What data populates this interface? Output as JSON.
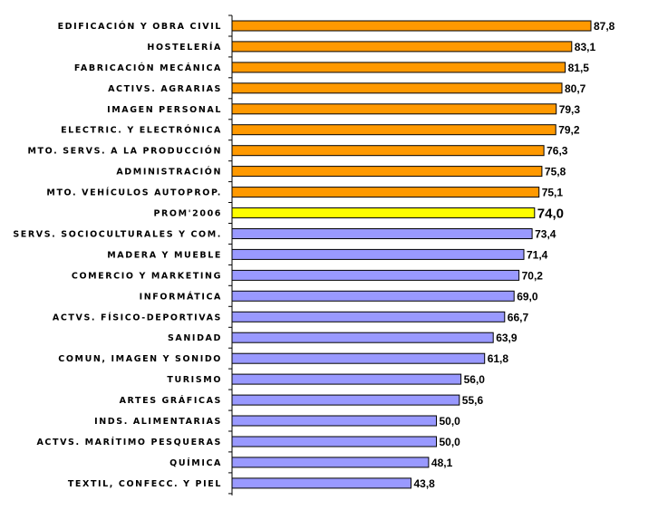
{
  "chart_data": {
    "type": "bar",
    "orientation": "horizontal",
    "categories": [
      "EDIFICACIÓN Y OBRA CIVIL",
      "HOSTELERÍA",
      "FABRICACIÓN MECÁNICA",
      "ACTIVS. AGRARIAS",
      "IMAGEN PERSONAL",
      "ELECTRIC. Y ELECTRÓNICA",
      "MTO. SERVS. A LA PRODUCCIÓN",
      "ADMINISTRACIÓN",
      "MTO. VEHÍCULOS AUTOPROP.",
      "PROM'2006",
      "SERVS. SOCIOCULTURALES Y COM.",
      "MADERA Y MUEBLE",
      "COMERCIO Y MARKETING",
      "INFORMÁTICA",
      "ACTVS. FÍSICO-DEPORTIVAS",
      "SANIDAD",
      "COMUN, IMAGEN Y SONIDO",
      "TURISMO",
      "ARTES GRÁFICAS",
      "INDS. ALIMENTARIAS",
      "ACTVS. MARÍTIMO PESQUERAS",
      "QUÍMICA",
      "TEXTIL, CONFECC. Y PIEL"
    ],
    "values": [
      87.8,
      83.1,
      81.5,
      80.7,
      79.3,
      79.2,
      76.3,
      75.8,
      75.1,
      74.0,
      73.4,
      71.4,
      70.2,
      69.0,
      66.7,
      63.9,
      61.8,
      56.0,
      55.6,
      50.0,
      50.0,
      48.1,
      43.8
    ],
    "value_labels": [
      "87,8",
      "83,1",
      "81,5",
      "80,7",
      "79,3",
      "79,2",
      "76,3",
      "75,8",
      "75,1",
      "74,0",
      "73,4",
      "71,4",
      "70,2",
      "69,0",
      "66,7",
      "63,9",
      "61,8",
      "56,0",
      "55,6",
      "50,0",
      "50,0",
      "48,1",
      "43,8"
    ],
    "xlim": [
      0,
      100
    ],
    "grid": false,
    "legend": "none",
    "colors": {
      "above_average": "#FF9900",
      "average": "#FFFF00",
      "below_average": "#9999FF",
      "outline": "#000000"
    },
    "average_category": "PROM'2006"
  }
}
